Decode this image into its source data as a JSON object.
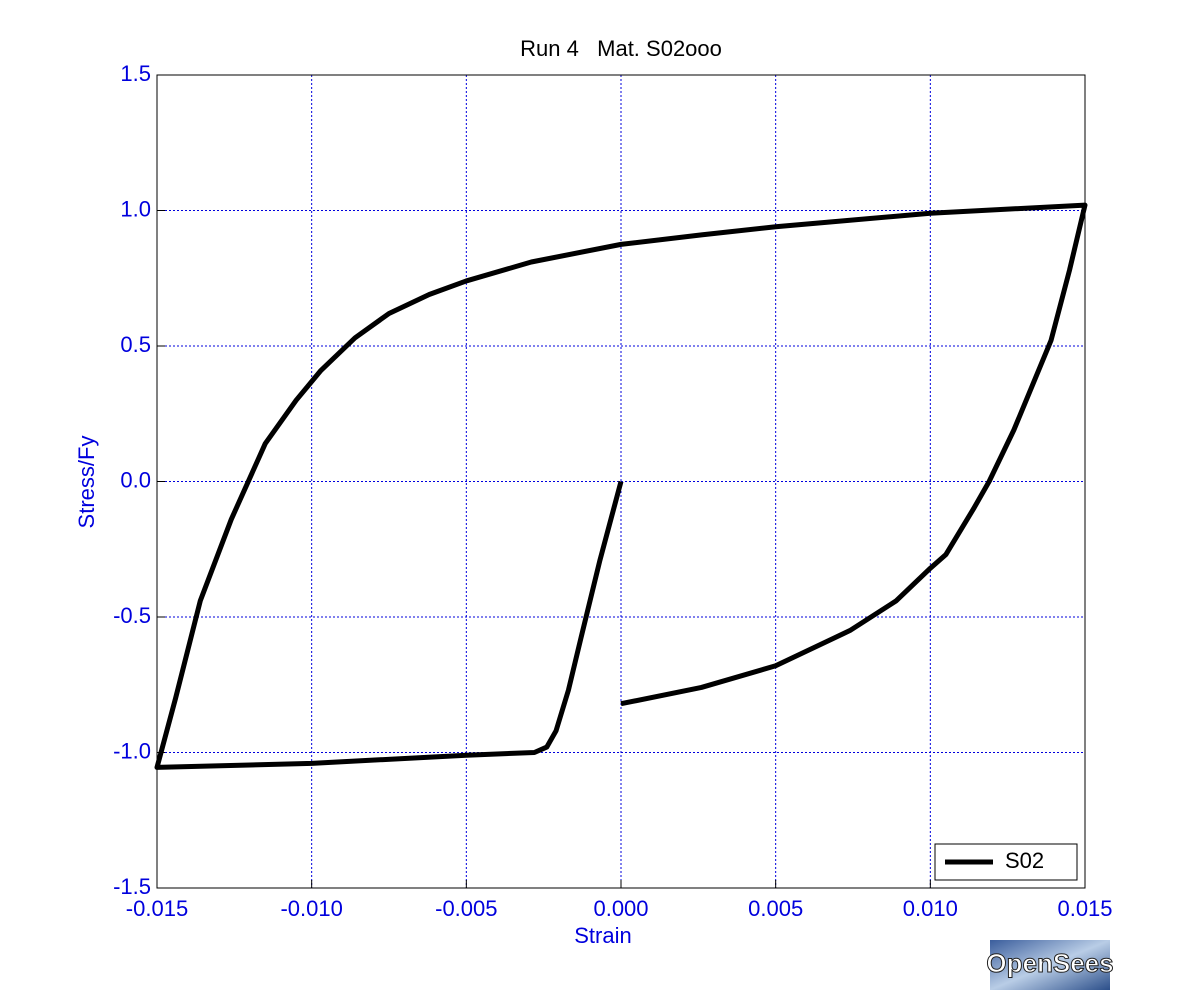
{
  "chart_data": {
    "type": "line",
    "title": "Run 4   Mat. S02ooo",
    "xlabel": "Strain",
    "ylabel": "Stress/Fy",
    "x": [
      0,
      -0.00068,
      -0.0013,
      -0.0017,
      -0.0021,
      -0.0024,
      -0.0028,
      -0.005,
      -0.01,
      -0.015,
      -0.0144,
      -0.0136,
      -0.0126,
      -0.0115,
      -0.0105,
      -0.0097,
      -0.0086,
      -0.0075,
      -0.0062,
      -0.005,
      -0.0029,
      0,
      0.0026,
      0.005,
      0.01,
      0.015,
      0.0145,
      0.0139,
      0.0127,
      0.0119,
      0.0114,
      0.0105,
      0.01,
      0.0089,
      0.0074,
      0.005,
      0.0026,
      0
    ],
    "series": [
      {
        "name": "S02",
        "color": "#000000",
        "values": [
          0,
          -0.29,
          -0.58,
          -0.77,
          -0.92,
          -0.98,
          -1.0,
          -1.01,
          -1.04,
          -1.055,
          -0.8,
          -0.44,
          -0.14,
          0.14,
          0.3,
          0.41,
          0.53,
          0.62,
          0.69,
          0.74,
          0.81,
          0.875,
          0.91,
          0.94,
          0.99,
          1.02,
          0.78,
          0.52,
          0.19,
          0.0,
          -0.1,
          -0.27,
          -0.32,
          -0.44,
          -0.55,
          -0.68,
          -0.76,
          -0.82
        ]
      }
    ],
    "xlim": [
      -0.015,
      0.015
    ],
    "xticks": [
      -0.015,
      {
        "value": -0.01,
        "label": "-0.010"
      },
      -0.005,
      {
        "value": 0,
        "label": "0.000"
      },
      0.005,
      {
        "value": 0.01,
        "label": "0.010"
      },
      0.015
    ],
    "ylim": [
      -1.5,
      1.5
    ],
    "yticks": [
      -1.5,
      {
        "value": -1,
        "label": "-1.0"
      },
      -0.5,
      {
        "value": 0,
        "label": "0.0"
      },
      0.5,
      {
        "value": 1,
        "label": "1.0"
      },
      1.5
    ],
    "grid": true,
    "legend": "lower right",
    "logo": "OpenSees"
  }
}
